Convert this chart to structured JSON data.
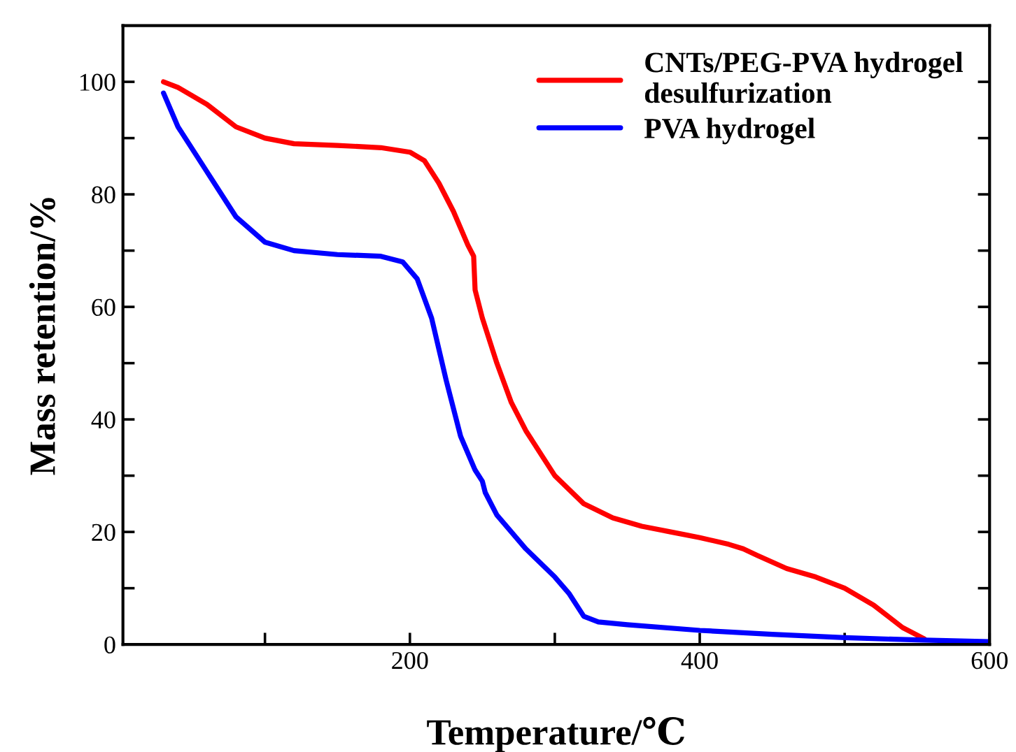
{
  "chart_data": {
    "type": "line",
    "xlabel": "Temperature/℃",
    "ylabel": "Mass retention/%",
    "xlim": [
      2,
      600
    ],
    "ylim": [
      0,
      110
    ],
    "xticks": [
      {
        "value": 100,
        "label": null
      },
      200,
      {
        "value": 300,
        "label": null
      },
      400,
      {
        "value": 500,
        "label": null
      },
      600
    ],
    "yticks": [
      0,
      {
        "value": 10,
        "label": null
      },
      20,
      {
        "value": 30,
        "label": null
      },
      40,
      {
        "value": 50,
        "label": null
      },
      60,
      {
        "value": 70,
        "label": null
      },
      80,
      {
        "value": 90,
        "label": null
      },
      100
    ],
    "grid": false,
    "legend": "top right",
    "marker": "none",
    "line_style": "solid",
    "series": [
      {
        "name": "CNTs/PEG-PVA hydrogel\ndesulfurization",
        "color": "#ff0000",
        "x": [
          30,
          40,
          60,
          80,
          100,
          120,
          150,
          180,
          200,
          210,
          220,
          230,
          240,
          244,
          245,
          250,
          260,
          270,
          280,
          300,
          320,
          340,
          360,
          380,
          400,
          420,
          430,
          440,
          460,
          480,
          500,
          520,
          540,
          555
        ],
        "values": [
          100,
          99,
          96,
          92,
          90,
          89,
          88.7,
          88.3,
          87.5,
          86,
          82,
          77,
          71,
          69,
          63,
          58,
          50,
          43,
          38,
          30,
          25,
          22.5,
          21,
          20,
          19,
          17.8,
          17,
          15.8,
          13.5,
          12,
          10,
          7,
          3,
          1
        ]
      },
      {
        "name": "PVA hydrogel",
        "color": "#0000ff",
        "x": [
          30,
          40,
          60,
          80,
          100,
          120,
          150,
          180,
          195,
          205,
          215,
          225,
          235,
          245,
          250,
          252,
          260,
          280,
          300,
          310,
          320,
          330,
          350,
          400,
          450,
          500,
          550,
          600
        ],
        "values": [
          98,
          92,
          84,
          76,
          71.5,
          70,
          69.3,
          69,
          68,
          65,
          58,
          47,
          37,
          31,
          29,
          27,
          23,
          17,
          12,
          9,
          5,
          4,
          3.5,
          2.5,
          1.8,
          1.2,
          0.8,
          0.5
        ]
      }
    ]
  }
}
